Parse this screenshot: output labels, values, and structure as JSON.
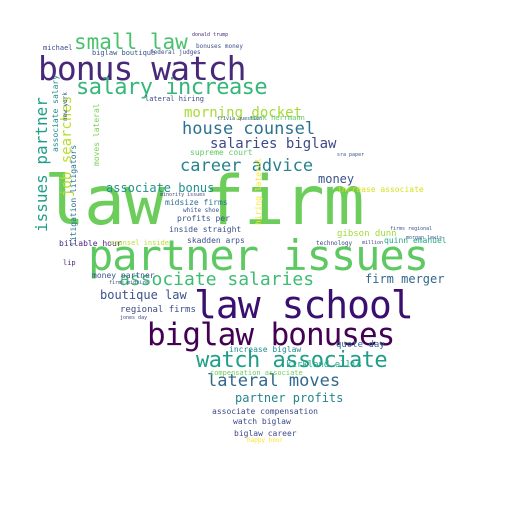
{
  "words": [
    {
      "text": "law firm",
      "color": "#6ccd5a"
    },
    {
      "text": "partner issues",
      "color": "#5ec962"
    },
    {
      "text": "law school",
      "color": "#3b0f70"
    },
    {
      "text": "bonus watch",
      "color": "#482878"
    },
    {
      "text": "biglaw bonuses",
      "color": "#440154"
    },
    {
      "text": "salary increase",
      "color": "#35b779"
    },
    {
      "text": "watch associate",
      "color": "#1f9e89"
    },
    {
      "text": "associate salaries",
      "color": "#3fbc73"
    },
    {
      "text": "small law",
      "color": "#4ac16d"
    },
    {
      "text": "lateral moves",
      "color": "#31688e"
    },
    {
      "text": "house counsel",
      "color": "#2c728e"
    },
    {
      "text": "career advice",
      "color": "#26828e"
    },
    {
      "text": "salaries biglaw",
      "color": "#3e4989"
    },
    {
      "text": "morning docket",
      "color": "#a5db36"
    },
    {
      "text": "firm merger",
      "color": "#31688e"
    },
    {
      "text": "issues partner",
      "color": "#1f9e89"
    },
    {
      "text": "associate bonus",
      "color": "#21918c"
    },
    {
      "text": "boutique law",
      "color": "#3b528b"
    },
    {
      "text": "partner profits",
      "color": "#25858e"
    },
    {
      "text": "job searches",
      "color": "#b8de29"
    },
    {
      "text": "money",
      "color": "#3b528b"
    },
    {
      "text": "regional firms",
      "color": "#3e4a89"
    },
    {
      "text": "kirkland ellis",
      "color": "#22a884"
    },
    {
      "text": "quote day",
      "color": "#31688e"
    },
    {
      "text": "associate compensation",
      "color": "#3e4989"
    },
    {
      "text": "watch biglaw",
      "color": "#3e4989"
    },
    {
      "text": "biglaw career",
      "color": "#3e4a89"
    },
    {
      "text": "increase biglaw",
      "color": "#228c8d"
    },
    {
      "text": "compensation associate",
      "color": "#6ece58"
    },
    {
      "text": "skadden arps",
      "color": "#3b528b"
    },
    {
      "text": "gibson dunn",
      "color": "#a0da39"
    },
    {
      "text": "quinn emanuel",
      "color": "#22a884"
    },
    {
      "text": "money partner",
      "color": "#3b528b"
    },
    {
      "text": "billable hour",
      "color": "#482878"
    },
    {
      "text": "counsel inside",
      "color": "#b8de29"
    },
    {
      "text": "profits per",
      "color": "#3b528b"
    },
    {
      "text": "inside straight",
      "color": "#3b528b"
    },
    {
      "text": "midsize firms",
      "color": "#2c728e"
    },
    {
      "text": "supreme court",
      "color": "#5ec962"
    },
    {
      "text": "mark herrmann",
      "color": "#5ec962"
    },
    {
      "text": "increase associate",
      "color": "#d8e219"
    },
    {
      "text": "associate salary",
      "color": "#23898e"
    },
    {
      "text": "litigation litigators",
      "color": "#2c728e"
    },
    {
      "text": "moves lateral",
      "color": "#7ad151"
    },
    {
      "text": "hiring lateral",
      "color": "#fde725"
    },
    {
      "text": "lateral hiring",
      "color": "#3e4989"
    },
    {
      "text": "biglaw boutique",
      "color": "#3b528b"
    },
    {
      "text": "bonuses money",
      "color": "#3b528b"
    },
    {
      "text": "happy hour",
      "color": "#fde725"
    },
    {
      "text": "michael",
      "color": "#3e4989"
    },
    {
      "text": "new york",
      "color": "#3b528b"
    },
    {
      "text": "federal judges",
      "color": "#3e4989"
    },
    {
      "text": "donald trump",
      "color": "#482878"
    },
    {
      "text": "jones day",
      "color": "#3e4989"
    },
    {
      "text": "minority issues",
      "color": "#3e4989"
    },
    {
      "text": "firms midsize",
      "color": "#3b528b"
    },
    {
      "text": "technology",
      "color": "#3e4989"
    },
    {
      "text": "million",
      "color": "#3e4989"
    },
    {
      "text": "morgan lewis",
      "color": "#3b528b"
    },
    {
      "text": "firms regional",
      "color": "#3b528b"
    },
    {
      "text": "trivia question",
      "color": "#3b528b"
    },
    {
      "text": "lip",
      "color": "#482878"
    },
    {
      "text": "sra paper",
      "color": "#3b528b"
    },
    {
      "text": "white shoe",
      "color": "#3b528b"
    }
  ]
}
